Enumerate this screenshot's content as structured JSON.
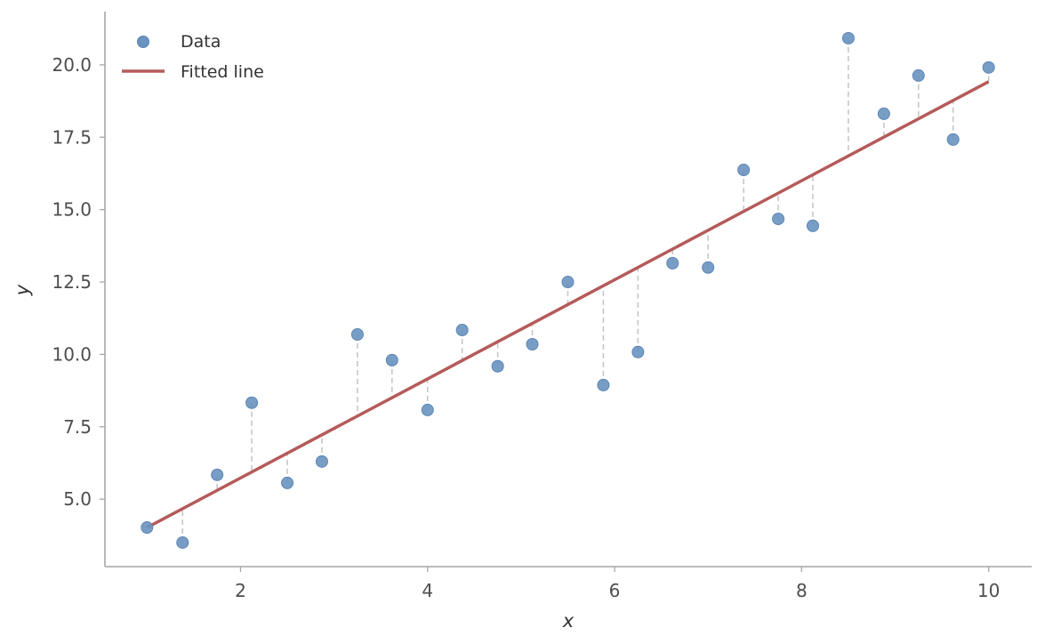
{
  "chart_data": {
    "type": "scatter",
    "title": "",
    "xlabel": "x",
    "ylabel": "y",
    "xlim": [
      0.55,
      10.46
    ],
    "ylim": [
      2.67,
      21.84
    ],
    "grid": false,
    "legend_position": "upper left",
    "xticks": [
      2,
      4,
      6,
      8,
      10
    ],
    "xtick_labels": [
      "2",
      "4",
      "6",
      "8",
      "10"
    ],
    "yticks": [
      5.0,
      7.5,
      10.0,
      12.5,
      15.0,
      17.5,
      20.0
    ],
    "ytick_labels": [
      "5.0",
      "7.5",
      "10.0",
      "12.5",
      "15.0",
      "17.5",
      "20.0"
    ],
    "series": [
      {
        "name": "Data",
        "kind": "scatter",
        "color": "#5b87b8",
        "x": [
          1.0,
          1.38,
          1.75,
          2.12,
          2.5,
          2.87,
          3.25,
          3.62,
          4.0,
          4.37,
          4.75,
          5.12,
          5.5,
          5.88,
          6.25,
          6.62,
          7.0,
          7.38,
          7.75,
          8.12,
          8.5,
          8.88,
          9.25,
          9.62,
          10.0
        ],
        "y": [
          4.02,
          3.5,
          5.84,
          8.33,
          5.56,
          6.3,
          10.69,
          9.8,
          8.08,
          10.84,
          9.59,
          10.35,
          12.5,
          8.94,
          10.08,
          13.15,
          13.0,
          16.37,
          14.68,
          14.44,
          20.92,
          18.31,
          19.63,
          17.42,
          19.91
        ]
      },
      {
        "name": "Fitted line",
        "kind": "line",
        "color": "#b55a5a",
        "x": [
          1.0,
          10.0
        ],
        "y": [
          4.02,
          19.42
        ],
        "slope": 1.711,
        "intercept": 2.31
      }
    ],
    "annotations": [
      {
        "kind": "residual-lines",
        "style": "dashed",
        "color": "#c4c4c4",
        "description": "vertical dashed segments from each data point to the fitted line"
      }
    ]
  },
  "legend": {
    "items": [
      {
        "label": "Data",
        "marker": "circle"
      },
      {
        "label": "Fitted line",
        "marker": "line"
      }
    ]
  },
  "colors": {
    "point_fill": "#6a93c0",
    "point_edge": "#5b85b5",
    "line": "#b55a5a",
    "residual": "#c4c4c4",
    "spine": "#a6a6a6",
    "tick_text": "#4d4d4d"
  }
}
